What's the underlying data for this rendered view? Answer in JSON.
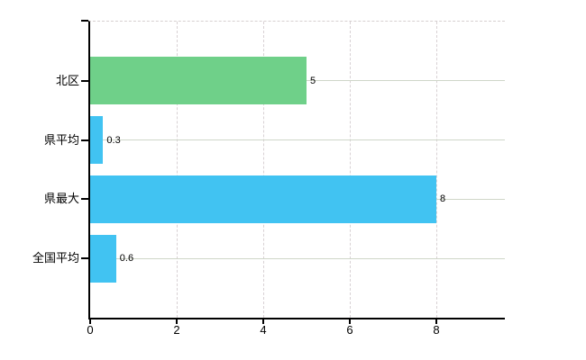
{
  "chart_data": {
    "type": "bar",
    "orientation": "horizontal",
    "title": "",
    "xlabel": "",
    "ylabel": "",
    "categories": [
      "北区",
      "県平均",
      "県最大",
      "全国平均"
    ],
    "values": [
      5,
      0.3,
      8,
      0.6
    ],
    "value_labels": [
      "5",
      "0.3",
      "8",
      "0.6"
    ],
    "bar_colors": [
      "#6fd089",
      "#41c3f2",
      "#41c3f2",
      "#41c3f2"
    ],
    "x_ticks": [
      "0",
      "2",
      "4",
      "6",
      "8"
    ],
    "x_tick_values": [
      0,
      2,
      4,
      6,
      8
    ],
    "xlim": [
      0,
      9.58
    ],
    "legend": "none",
    "grid": {
      "horizontal_style": "solid",
      "vertical_style": "dashed",
      "horizontal_color": "#cfd6c8",
      "vertical_color": "#d8d1d4"
    }
  },
  "colors": {
    "background": "#ffffff",
    "axis": "#000000",
    "text": "#000000",
    "bar_green": "#6fd089",
    "bar_blue": "#41c3f2"
  }
}
